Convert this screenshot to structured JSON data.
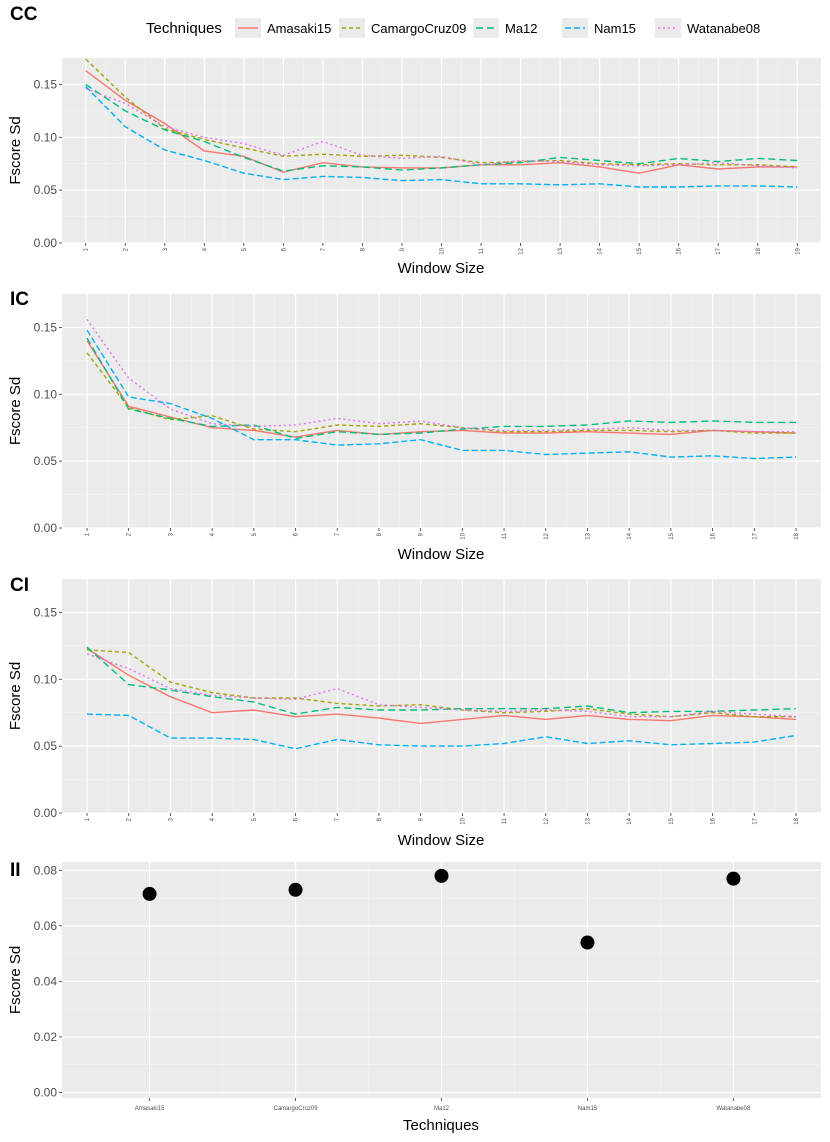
{
  "legend": {
    "title": "Techniques",
    "items": [
      {
        "name": "Amasaki15",
        "color": "#F8766D",
        "dash": "solid"
      },
      {
        "name": "CamargoCruz09",
        "color": "#A3A500",
        "dash": "dotted-short"
      },
      {
        "name": "Ma12",
        "color": "#00BF7D",
        "dash": "dashed-long"
      },
      {
        "name": "Nam15",
        "color": "#00B0F6",
        "dash": "dashed"
      },
      {
        "name": "Watanabe08",
        "color": "#E76BF3",
        "dash": "dotted"
      }
    ]
  },
  "chart_data": [
    {
      "panel": "CC",
      "type": "line",
      "xlabel": "Window Size",
      "ylabel": "Fscore Sd",
      "ylim": [
        0,
        0.175
      ],
      "yticks": [
        "0.00",
        "0.05",
        "0.10",
        "0.15"
      ],
      "x": [
        1,
        2,
        3,
        4,
        5,
        6,
        7,
        8,
        9,
        10,
        11,
        12,
        13,
        14,
        15,
        16,
        17,
        18,
        19
      ],
      "series": [
        {
          "name": "Amasaki15",
          "values": [
            0.163,
            0.135,
            0.113,
            0.087,
            0.082,
            0.067,
            0.076,
            0.072,
            0.071,
            0.071,
            0.074,
            0.074,
            0.076,
            0.072,
            0.066,
            0.074,
            0.07,
            0.072,
            0.072
          ]
        },
        {
          "name": "CamargoCruz09",
          "values": [
            0.174,
            0.138,
            0.108,
            0.098,
            0.09,
            0.082,
            0.084,
            0.082,
            0.083,
            0.081,
            0.076,
            0.077,
            0.078,
            0.075,
            0.074,
            0.075,
            0.074,
            0.074,
            0.072
          ]
        },
        {
          "name": "Ma12",
          "values": [
            0.15,
            0.125,
            0.107,
            0.096,
            0.081,
            0.068,
            0.073,
            0.072,
            0.069,
            0.071,
            0.074,
            0.076,
            0.081,
            0.078,
            0.075,
            0.08,
            0.077,
            0.08,
            0.078
          ]
        },
        {
          "name": "Nam15",
          "values": [
            0.148,
            0.11,
            0.088,
            0.078,
            0.066,
            0.06,
            0.063,
            0.062,
            0.059,
            0.06,
            0.056,
            0.056,
            0.055,
            0.056,
            0.053,
            0.053,
            0.054,
            0.054,
            0.053
          ]
        },
        {
          "name": "Watanabe08",
          "values": [
            0.146,
            0.132,
            0.11,
            0.1,
            0.094,
            0.083,
            0.096,
            0.083,
            0.08,
            0.082,
            0.074,
            0.078,
            0.077,
            0.074,
            0.073,
            0.074,
            0.076,
            0.073,
            0.071
          ]
        }
      ]
    },
    {
      "panel": "IC",
      "type": "line",
      "xlabel": "Window Size",
      "ylabel": "Fscore Sd",
      "ylim": [
        0,
        0.175
      ],
      "yticks": [
        "0.00",
        "0.05",
        "0.10",
        "0.15"
      ],
      "x": [
        1,
        2,
        3,
        4,
        5,
        6,
        7,
        8,
        9,
        10,
        11,
        12,
        13,
        14,
        15,
        16,
        17,
        18
      ],
      "series": [
        {
          "name": "Amasaki15",
          "values": [
            0.14,
            0.091,
            0.083,
            0.075,
            0.073,
            0.068,
            0.073,
            0.07,
            0.072,
            0.073,
            0.071,
            0.071,
            0.072,
            0.071,
            0.07,
            0.073,
            0.072,
            0.071
          ]
        },
        {
          "name": "CamargoCruz09",
          "values": [
            0.131,
            0.09,
            0.081,
            0.084,
            0.074,
            0.072,
            0.077,
            0.076,
            0.078,
            0.075,
            0.072,
            0.072,
            0.073,
            0.073,
            0.072,
            0.073,
            0.071,
            0.071
          ]
        },
        {
          "name": "Ma12",
          "values": [
            0.142,
            0.089,
            0.082,
            0.076,
            0.077,
            0.067,
            0.072,
            0.07,
            0.071,
            0.074,
            0.076,
            0.076,
            0.077,
            0.08,
            0.079,
            0.08,
            0.079,
            0.079
          ]
        },
        {
          "name": "Nam15",
          "values": [
            0.148,
            0.098,
            0.093,
            0.082,
            0.066,
            0.066,
            0.062,
            0.063,
            0.066,
            0.058,
            0.058,
            0.055,
            0.056,
            0.057,
            0.053,
            0.054,
            0.052,
            0.053
          ]
        },
        {
          "name": "Watanabe08",
          "values": [
            0.156,
            0.112,
            0.089,
            0.078,
            0.076,
            0.077,
            0.082,
            0.078,
            0.08,
            0.075,
            0.073,
            0.073,
            0.074,
            0.075,
            0.073,
            0.073,
            0.072,
            0.072
          ]
        }
      ]
    },
    {
      "panel": "CI",
      "type": "line",
      "xlabel": "Window Size",
      "ylabel": "Fscore Sd",
      "ylim": [
        0,
        0.175
      ],
      "yticks": [
        "0.00",
        "0.05",
        "0.10",
        "0.15"
      ],
      "x": [
        1,
        2,
        3,
        4,
        5,
        6,
        7,
        8,
        9,
        10,
        11,
        12,
        13,
        14,
        15,
        16,
        17,
        18
      ],
      "series": [
        {
          "name": "Amasaki15",
          "values": [
            0.123,
            0.103,
            0.087,
            0.075,
            0.077,
            0.072,
            0.074,
            0.071,
            0.067,
            0.07,
            0.073,
            0.07,
            0.073,
            0.07,
            0.069,
            0.073,
            0.072,
            0.07
          ]
        },
        {
          "name": "CamargoCruz09",
          "values": [
            0.122,
            0.12,
            0.098,
            0.09,
            0.086,
            0.086,
            0.082,
            0.08,
            0.081,
            0.077,
            0.075,
            0.076,
            0.078,
            0.074,
            0.072,
            0.075,
            0.072,
            0.072
          ]
        },
        {
          "name": "Ma12",
          "values": [
            0.124,
            0.096,
            0.092,
            0.087,
            0.083,
            0.074,
            0.079,
            0.077,
            0.077,
            0.078,
            0.078,
            0.078,
            0.08,
            0.075,
            0.076,
            0.076,
            0.077,
            0.078
          ]
        },
        {
          "name": "Nam15",
          "values": [
            0.074,
            0.073,
            0.056,
            0.056,
            0.055,
            0.048,
            0.055,
            0.051,
            0.05,
            0.05,
            0.052,
            0.057,
            0.052,
            0.054,
            0.051,
            0.052,
            0.053,
            0.058
          ]
        },
        {
          "name": "Watanabe08",
          "values": [
            0.119,
            0.108,
            0.093,
            0.088,
            0.086,
            0.085,
            0.093,
            0.081,
            0.079,
            0.077,
            0.076,
            0.077,
            0.076,
            0.072,
            0.072,
            0.076,
            0.074,
            0.072
          ]
        }
      ]
    },
    {
      "panel": "II",
      "type": "scatter",
      "xlabel": "Techniques",
      "ylabel": "Fscore Sd",
      "ylim": [
        -0.002,
        0.083
      ],
      "yticks": [
        "0.00",
        "0.02",
        "0.04",
        "0.06",
        "0.08"
      ],
      "categories": [
        "Amasaki15",
        "CamargoCruz09",
        "Ma12",
        "Nam15",
        "Watanabe08"
      ],
      "values": [
        0.0715,
        0.073,
        0.078,
        0.054,
        0.077
      ]
    }
  ]
}
